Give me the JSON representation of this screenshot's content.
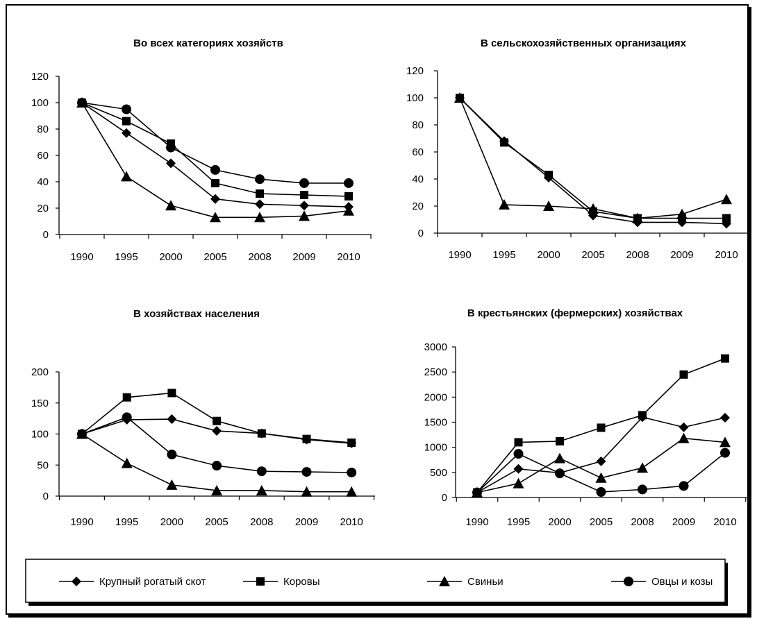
{
  "legend": [
    {
      "name": "Крупный рогатый скот",
      "marker": "diamond"
    },
    {
      "name": "Коровы",
      "marker": "square"
    },
    {
      "name": "Свиньи",
      "marker": "triangle"
    },
    {
      "name": "Овцы и козы",
      "marker": "circle"
    }
  ],
  "chart_data": [
    {
      "type": "line",
      "title": "Во всех категориях хозяйств",
      "xlabel": "",
      "ylabel": "",
      "categories": [
        "1990",
        "1995",
        "2000",
        "2005",
        "2008",
        "2009",
        "2010"
      ],
      "ylim": [
        0,
        120
      ],
      "yticks": [
        0,
        20,
        40,
        60,
        80,
        100,
        120
      ],
      "grid": false,
      "series": [
        {
          "name": "Крупный рогатый скот",
          "marker": "diamond",
          "values": [
            100,
            77,
            54,
            27,
            23,
            22,
            21
          ]
        },
        {
          "name": "Коровы",
          "marker": "square",
          "values": [
            100,
            86,
            69,
            39,
            31,
            30,
            29
          ]
        },
        {
          "name": "Свиньи",
          "marker": "triangle",
          "values": [
            100,
            44,
            22,
            13,
            13,
            14,
            18
          ]
        },
        {
          "name": "Овцы и козы",
          "marker": "circle",
          "values": [
            100,
            95,
            66,
            49,
            42,
            39,
            39
          ]
        }
      ]
    },
    {
      "type": "line",
      "title": "В сельскохозяйственных  организациях",
      "xlabel": "",
      "ylabel": "",
      "categories": [
        "1990",
        "1995",
        "2000",
        "2005",
        "2008",
        "2009",
        "2010"
      ],
      "ylim": [
        0,
        120
      ],
      "yticks": [
        0,
        20,
        40,
        60,
        80,
        100,
        120
      ],
      "grid": false,
      "series": [
        {
          "name": "Крупный рогатый скот",
          "marker": "diamond",
          "values": [
            100,
            68,
            41,
            13,
            8,
            8,
            7
          ]
        },
        {
          "name": "Коровы",
          "marker": "square",
          "values": [
            100,
            67,
            43,
            16,
            11,
            11,
            11
          ]
        },
        {
          "name": "Свиньи",
          "marker": "triangle",
          "values": [
            100,
            21,
            20,
            18,
            11,
            14,
            25
          ]
        }
      ]
    },
    {
      "type": "line",
      "title": "В хозяйствах населения",
      "xlabel": "",
      "ylabel": "",
      "categories": [
        "1990",
        "1995",
        "2000",
        "2005",
        "2008",
        "2009",
        "2010"
      ],
      "ylim": [
        0,
        200
      ],
      "yticks": [
        0,
        50,
        100,
        150,
        200
      ],
      "grid": false,
      "series": [
        {
          "name": "Крупный рогатый скот",
          "marker": "diamond",
          "values": [
            100,
            123,
            124,
            105,
            101,
            91,
            85
          ]
        },
        {
          "name": "Коровы",
          "marker": "square",
          "values": [
            100,
            159,
            166,
            121,
            101,
            92,
            86
          ]
        },
        {
          "name": "Свиньи",
          "marker": "triangle",
          "values": [
            100,
            53,
            18,
            9,
            9,
            7,
            7
          ]
        },
        {
          "name": "Овцы и козы",
          "marker": "circle",
          "values": [
            100,
            127,
            67,
            49,
            40,
            39,
            38
          ]
        }
      ]
    },
    {
      "type": "line",
      "title": "В крестьянских (фермерских) хозяйствах",
      "xlabel": "",
      "ylabel": "",
      "categories": [
        "1990",
        "1995",
        "2000",
        "2005",
        "2008",
        "2009",
        "2010"
      ],
      "ylim": [
        0,
        3000
      ],
      "yticks": [
        0,
        500,
        1000,
        1500,
        2000,
        2500,
        3000
      ],
      "grid": false,
      "series": [
        {
          "name": "Крупный рогатый скот",
          "marker": "diamond",
          "values": [
            100,
            570,
            490,
            720,
            1600,
            1400,
            1590
          ]
        },
        {
          "name": "Коровы",
          "marker": "square",
          "values": [
            100,
            1100,
            1120,
            1390,
            1640,
            2450,
            2770
          ]
        },
        {
          "name": "Свиньи",
          "marker": "triangle",
          "values": [
            100,
            280,
            780,
            390,
            590,
            1180,
            1100
          ]
        },
        {
          "name": "Овцы и козы",
          "marker": "circle",
          "values": [
            100,
            870,
            480,
            110,
            160,
            230,
            890
          ]
        }
      ]
    }
  ]
}
